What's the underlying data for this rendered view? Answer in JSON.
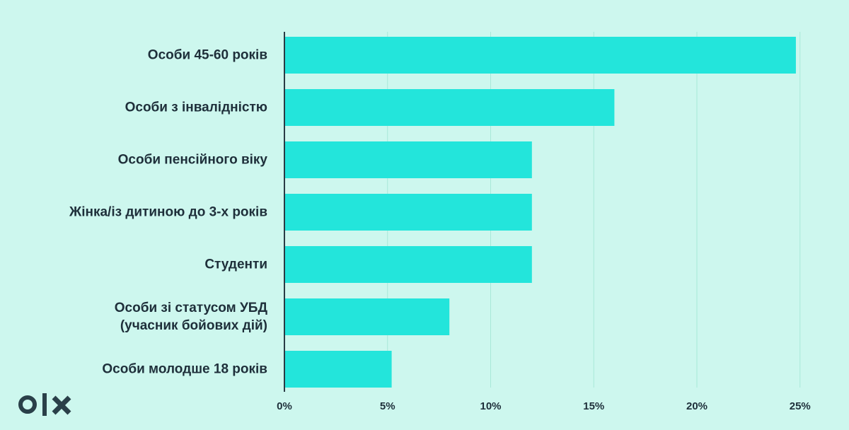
{
  "brand": {
    "logo_text": "olx",
    "color": "#2a4049"
  },
  "colors": {
    "background": "#cdf7ee",
    "bar": "#23e5db",
    "grid": "#a8e8d8",
    "axis": "#2a3b45",
    "text": "#1e2f3a"
  },
  "chart_data": {
    "type": "bar",
    "orientation": "horizontal",
    "categories": [
      "Особи 45-60 років",
      "Особи з інвалідністю",
      "Особи пенсійного віку",
      "Жінка/із дитиною до 3-х років",
      "Студенти",
      "Особи зі статусом УБД\n(учасник бойових дій)",
      "Особи молодше 18 років"
    ],
    "values": [
      24.8,
      16,
      12,
      12,
      12,
      8,
      5.2
    ],
    "xlim": [
      0,
      25
    ],
    "xticks": [
      0,
      5,
      10,
      15,
      20,
      25
    ],
    "xtick_labels": [
      "0%",
      "5%",
      "10%",
      "15%",
      "20%",
      "25%"
    ],
    "grid": "vertical",
    "title": "",
    "xlabel": "",
    "ylabel": ""
  }
}
